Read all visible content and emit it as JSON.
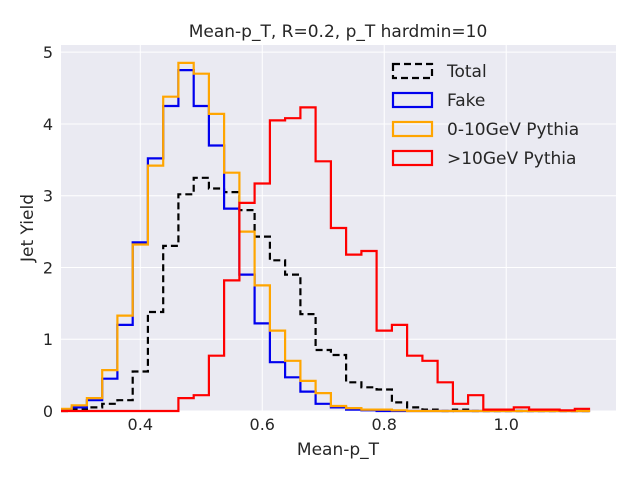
{
  "chart_data": {
    "type": "step-histogram",
    "title": "Mean-p_T, R=0.2, p_T hardmin=10",
    "xlabel": "Mean-p_T",
    "ylabel": "Jet Yield",
    "xlim": [
      0.27,
      1.18
    ],
    "ylim": [
      0,
      5.1
    ],
    "xticks": [
      0.4,
      0.6,
      0.8,
      1.0
    ],
    "xtick_labels": [
      "0.4",
      "0.6",
      "0.8",
      "1.0"
    ],
    "yticks": [
      0,
      1,
      2,
      3,
      4,
      5
    ],
    "ytick_labels": [
      "0",
      "1",
      "2",
      "3",
      "4",
      "5"
    ],
    "grid": true,
    "legend_position": "top-right",
    "bin_edges": [
      0.26,
      0.2875,
      0.3125,
      0.3375,
      0.3625,
      0.3875,
      0.4125,
      0.4375,
      0.4625,
      0.4875,
      0.5125,
      0.5375,
      0.5625,
      0.5875,
      0.6125,
      0.6375,
      0.6625,
      0.6875,
      0.7125,
      0.7375,
      0.7625,
      0.7875,
      0.8125,
      0.8375,
      0.8625,
      0.8875,
      0.9125,
      0.9375,
      0.9625,
      0.9875,
      1.0125,
      1.0375,
      1.0625,
      1.0875,
      1.1125,
      1.1375,
      1.18
    ],
    "series": [
      {
        "name": "Total",
        "color": "#000000",
        "dash": true,
        "values": [
          0,
          0.02,
          0.05,
          0.1,
          0.15,
          0.55,
          1.38,
          2.3,
          3.02,
          3.25,
          3.1,
          3.05,
          2.8,
          2.43,
          2.1,
          1.9,
          1.35,
          0.85,
          0.78,
          0.4,
          0.33,
          0.3,
          0.12,
          0.05,
          0.02,
          0,
          0.02,
          0,
          0,
          0,
          0,
          0,
          0,
          0,
          0
        ]
      },
      {
        "name": "Fake",
        "color": "#0000ee",
        "dash": false,
        "values": [
          0.02,
          0.05,
          0.15,
          0.45,
          1.2,
          2.35,
          3.52,
          4.25,
          4.75,
          4.25,
          3.7,
          2.82,
          1.9,
          1.22,
          0.68,
          0.47,
          0.27,
          0.1,
          0.05,
          0.02,
          0.01,
          0,
          0,
          0,
          0,
          0,
          0,
          0,
          0,
          0,
          0,
          0,
          0,
          0,
          0
        ]
      },
      {
        "name": "0-10GeV Pythia",
        "color": "#ffa500",
        "dash": false,
        "values": [
          0.03,
          0.08,
          0.18,
          0.57,
          1.33,
          2.32,
          3.42,
          4.38,
          4.85,
          4.7,
          4.14,
          3.32,
          2.5,
          1.75,
          1.12,
          0.7,
          0.42,
          0.25,
          0.07,
          0.04,
          0.02,
          0.02,
          0.01,
          0,
          0,
          0,
          0,
          0,
          0,
          0,
          0,
          0,
          0,
          0,
          0
        ]
      },
      {
        "name": ">10GeV Pythia",
        "color": "#ff0000",
        "dash": false,
        "values": [
          0,
          0,
          0,
          0,
          0,
          0,
          0,
          0,
          0.18,
          0.22,
          0.77,
          1.82,
          2.9,
          3.17,
          4.05,
          4.08,
          4.23,
          3.48,
          2.55,
          2.18,
          2.23,
          1.12,
          1.2,
          0.77,
          0.7,
          0.4,
          0.1,
          0.22,
          0.02,
          0.02,
          0.05,
          0.02,
          0.02,
          0.01,
          0.03
        ]
      }
    ]
  }
}
